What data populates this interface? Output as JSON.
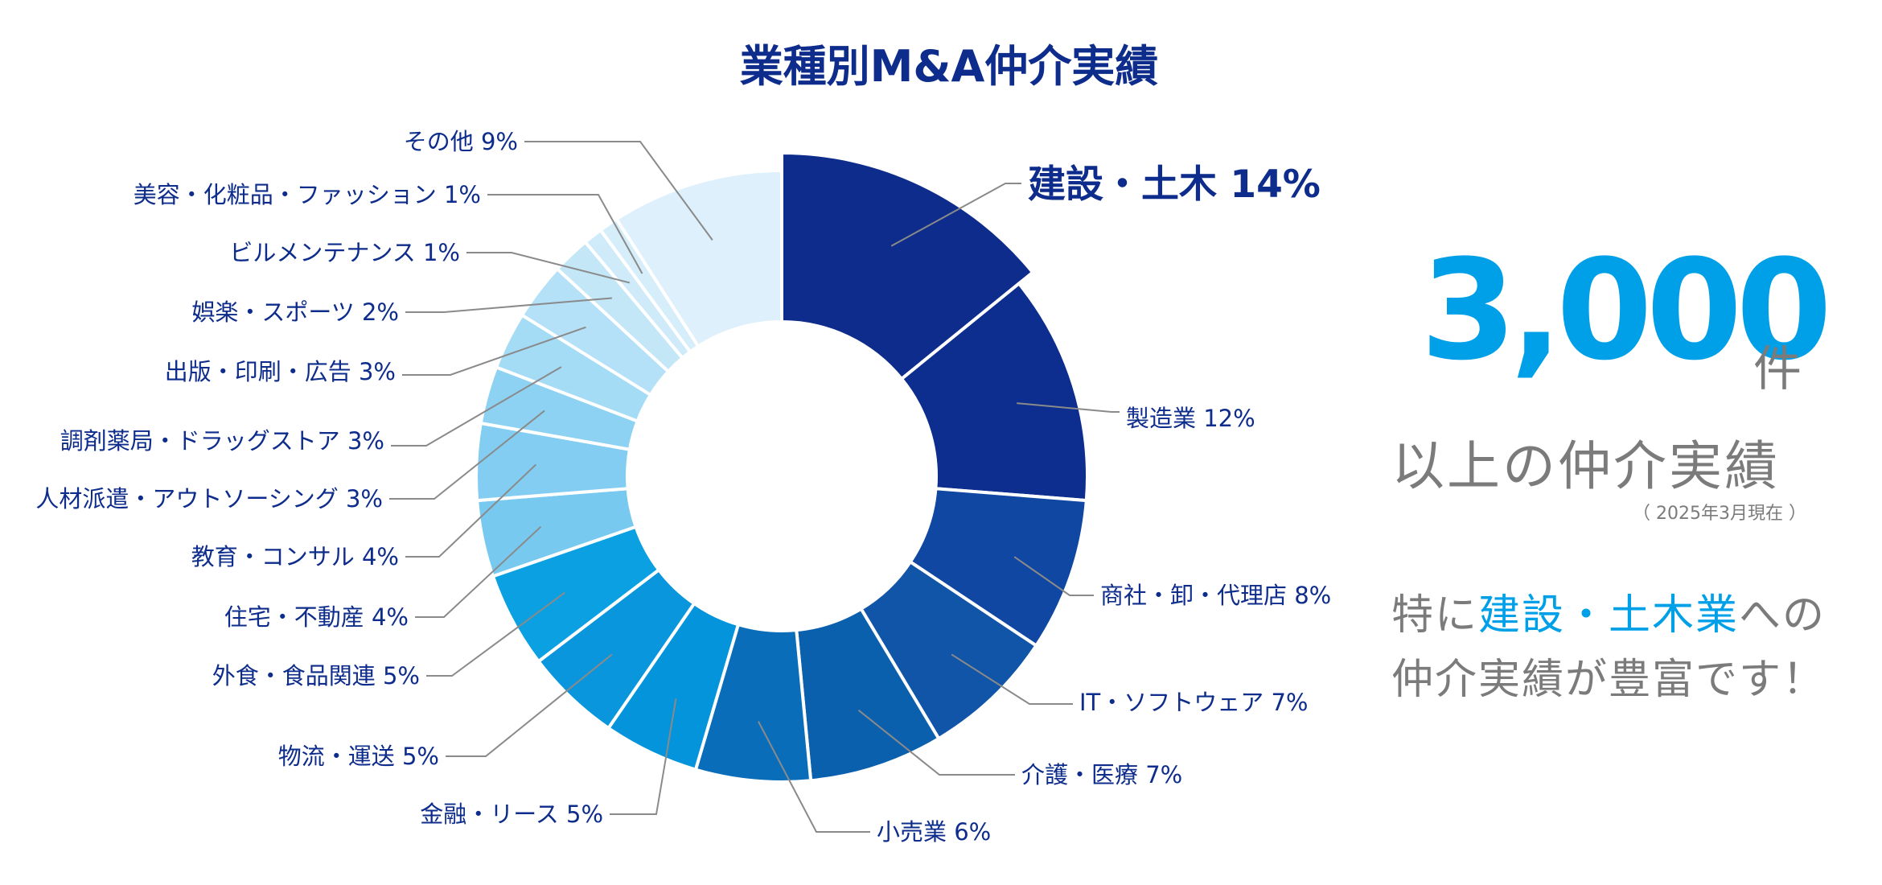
{
  "chart_data": {
    "type": "pie",
    "title": "業種別M&A仲介実績",
    "slices": [
      {
        "label": "建設・土木 14%",
        "value": 14,
        "color": "#0d2c8b",
        "emphasis": true
      },
      {
        "label": "製造業 12%",
        "value": 12,
        "color": "#0d2e8f"
      },
      {
        "label": "商社・卸・代理店 8%",
        "value": 8,
        "color": "#0f47a3"
      },
      {
        "label": "IT・ソフトウェア 7%",
        "value": 7,
        "color": "#1155a8"
      },
      {
        "label": "介護・医療 7%",
        "value": 7,
        "color": "#0b60ae"
      },
      {
        "label": "小売業 6%",
        "value": 6,
        "color": "#0a6db9"
      },
      {
        "label": "金融・リース 5%",
        "value": 5,
        "color": "#0494dc"
      },
      {
        "label": "物流・運送 5%",
        "value": 5,
        "color": "#0a96dc"
      },
      {
        "label": "外食・食品関連 5%",
        "value": 5,
        "color": "#0ba0e2"
      },
      {
        "label": "住宅・不動産 4%",
        "value": 4,
        "color": "#78c9ef"
      },
      {
        "label": "教育・コンサル 4%",
        "value": 4,
        "color": "#82cdf1"
      },
      {
        "label": "人材派遣・アウトソーシング 3%",
        "value": 3,
        "color": "#8ed2f3"
      },
      {
        "label": "調剤薬局・ドラッグストア 3%",
        "value": 3,
        "color": "#a4dbf5"
      },
      {
        "label": "出版・印刷・広告 3%",
        "value": 3,
        "color": "#b4e1f7"
      },
      {
        "label": "娯楽・スポーツ 2%",
        "value": 2,
        "color": "#c4e7f8"
      },
      {
        "label": "ビルメンテナンス 1%",
        "value": 1,
        "color": "#cfebf9"
      },
      {
        "label": "美容・化粧品・ファッション 1%",
        "value": 1,
        "color": "#d6eefa"
      },
      {
        "label": "その他 9%",
        "value": 9,
        "color": "#ddf0fb"
      }
    ]
  },
  "side_panel": {
    "big_number": "3,000",
    "unit": "件",
    "sub_heading": "以上の仲介実績",
    "as_of": "（ 2025年3月現在 ）",
    "note_line1_prefix": "特に",
    "note_line1_accent": "建設・土木業",
    "note_line1_suffix": "への",
    "note_line2": "仲介実績が豊富です！"
  },
  "colors": {
    "title": "#0d2c8b",
    "accent": "#00a0e9",
    "gray_text": "#7b7b7b",
    "leader_line": "#8a8a8a"
  }
}
